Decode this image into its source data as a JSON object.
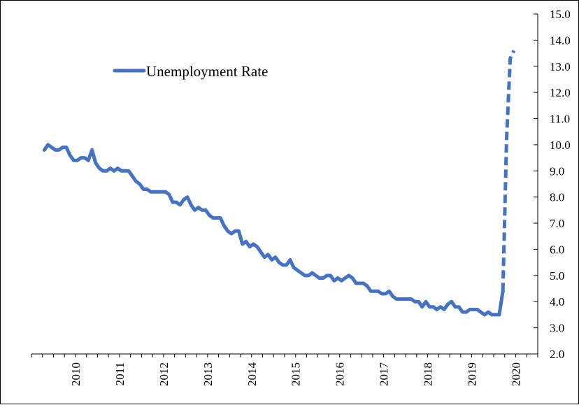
{
  "chart_data": {
    "type": "line",
    "title": "",
    "xlabel": "",
    "ylabel": "",
    "x_axis": {
      "type": "date",
      "range": [
        "2009-07",
        "2020-12"
      ],
      "tick_labels": [
        "2010",
        "2011",
        "2012",
        "2013",
        "2014",
        "2015",
        "2016",
        "2017",
        "2018",
        "2019",
        "2020"
      ],
      "label_rotation": "vertical"
    },
    "y_axis": {
      "position": "right",
      "range": [
        2.0,
        15.0
      ],
      "tick_labels": [
        "2.0",
        "3.0",
        "4.0",
        "5.0",
        "6.0",
        "7.0",
        "8.0",
        "9.0",
        "10.0",
        "11.0",
        "12.0",
        "13.0",
        "14.0",
        "15.0"
      ]
    },
    "grid": false,
    "legend": {
      "placement": "top-left",
      "entries": [
        "Unemployment Rate"
      ]
    },
    "series": [
      {
        "name": "Unemployment Rate",
        "color": "#4472C4",
        "style": "solid",
        "points": [
          [
            "2009-10",
            9.8
          ],
          [
            "2009-11",
            10.0
          ],
          [
            "2009-12",
            9.9
          ],
          [
            "2010-01",
            9.8
          ],
          [
            "2010-02",
            9.8
          ],
          [
            "2010-03",
            9.9
          ],
          [
            "2010-04",
            9.9
          ],
          [
            "2010-05",
            9.6
          ],
          [
            "2010-06",
            9.4
          ],
          [
            "2010-07",
            9.4
          ],
          [
            "2010-08",
            9.5
          ],
          [
            "2010-09",
            9.5
          ],
          [
            "2010-10",
            9.4
          ],
          [
            "2010-11",
            9.8
          ],
          [
            "2010-12",
            9.3
          ],
          [
            "2011-01",
            9.1
          ],
          [
            "2011-02",
            9.0
          ],
          [
            "2011-03",
            9.0
          ],
          [
            "2011-04",
            9.1
          ],
          [
            "2011-05",
            9.0
          ],
          [
            "2011-06",
            9.1
          ],
          [
            "2011-07",
            9.0
          ],
          [
            "2011-08",
            9.0
          ],
          [
            "2011-09",
            9.0
          ],
          [
            "2011-10",
            8.8
          ],
          [
            "2011-11",
            8.6
          ],
          [
            "2011-12",
            8.5
          ],
          [
            "2012-01",
            8.3
          ],
          [
            "2012-02",
            8.3
          ],
          [
            "2012-03",
            8.2
          ],
          [
            "2012-04",
            8.2
          ],
          [
            "2012-05",
            8.2
          ],
          [
            "2012-06",
            8.2
          ],
          [
            "2012-07",
            8.2
          ],
          [
            "2012-08",
            8.1
          ],
          [
            "2012-09",
            7.8
          ],
          [
            "2012-10",
            7.8
          ],
          [
            "2012-11",
            7.7
          ],
          [
            "2012-12",
            7.9
          ],
          [
            "2013-01",
            8.0
          ],
          [
            "2013-02",
            7.7
          ],
          [
            "2013-03",
            7.5
          ],
          [
            "2013-04",
            7.6
          ],
          [
            "2013-05",
            7.5
          ],
          [
            "2013-06",
            7.5
          ],
          [
            "2013-07",
            7.3
          ],
          [
            "2013-08",
            7.2
          ],
          [
            "2013-09",
            7.2
          ],
          [
            "2013-10",
            7.2
          ],
          [
            "2013-11",
            6.9
          ],
          [
            "2013-12",
            6.7
          ],
          [
            "2014-01",
            6.6
          ],
          [
            "2014-02",
            6.7
          ],
          [
            "2014-03",
            6.7
          ],
          [
            "2014-04",
            6.2
          ],
          [
            "2014-05",
            6.3
          ],
          [
            "2014-06",
            6.1
          ],
          [
            "2014-07",
            6.2
          ],
          [
            "2014-08",
            6.1
          ],
          [
            "2014-09",
            5.9
          ],
          [
            "2014-10",
            5.7
          ],
          [
            "2014-11",
            5.8
          ],
          [
            "2014-12",
            5.6
          ],
          [
            "2015-01",
            5.7
          ],
          [
            "2015-02",
            5.5
          ],
          [
            "2015-03",
            5.4
          ],
          [
            "2015-04",
            5.4
          ],
          [
            "2015-05",
            5.6
          ],
          [
            "2015-06",
            5.3
          ],
          [
            "2015-07",
            5.2
          ],
          [
            "2015-08",
            5.1
          ],
          [
            "2015-09",
            5.0
          ],
          [
            "2015-10",
            5.0
          ],
          [
            "2015-11",
            5.1
          ],
          [
            "2015-12",
            5.0
          ],
          [
            "2016-01",
            4.9
          ],
          [
            "2016-02",
            4.9
          ],
          [
            "2016-03",
            5.0
          ],
          [
            "2016-04",
            5.0
          ],
          [
            "2016-05",
            4.8
          ],
          [
            "2016-06",
            4.9
          ],
          [
            "2016-07",
            4.8
          ],
          [
            "2016-08",
            4.9
          ],
          [
            "2016-09",
            5.0
          ],
          [
            "2016-10",
            4.9
          ],
          [
            "2016-11",
            4.7
          ],
          [
            "2016-12",
            4.7
          ],
          [
            "2017-01",
            4.7
          ],
          [
            "2017-02",
            4.6
          ],
          [
            "2017-03",
            4.4
          ],
          [
            "2017-04",
            4.4
          ],
          [
            "2017-05",
            4.4
          ],
          [
            "2017-06",
            4.3
          ],
          [
            "2017-07",
            4.3
          ],
          [
            "2017-08",
            4.4
          ],
          [
            "2017-09",
            4.2
          ],
          [
            "2017-10",
            4.1
          ],
          [
            "2017-11",
            4.1
          ],
          [
            "2017-12",
            4.1
          ],
          [
            "2018-01",
            4.1
          ],
          [
            "2018-02",
            4.1
          ],
          [
            "2018-03",
            4.0
          ],
          [
            "2018-04",
            4.0
          ],
          [
            "2018-05",
            3.8
          ],
          [
            "2018-06",
            4.0
          ],
          [
            "2018-07",
            3.8
          ],
          [
            "2018-08",
            3.8
          ],
          [
            "2018-09",
            3.7
          ],
          [
            "2018-10",
            3.8
          ],
          [
            "2018-11",
            3.7
          ],
          [
            "2018-12",
            3.9
          ],
          [
            "2019-01",
            4.0
          ],
          [
            "2019-02",
            3.8
          ],
          [
            "2019-03",
            3.8
          ],
          [
            "2019-04",
            3.6
          ],
          [
            "2019-05",
            3.6
          ],
          [
            "2019-06",
            3.7
          ],
          [
            "2019-07",
            3.7
          ],
          [
            "2019-08",
            3.7
          ],
          [
            "2019-09",
            3.6
          ],
          [
            "2019-10",
            3.5
          ],
          [
            "2019-11",
            3.6
          ],
          [
            "2019-12",
            3.5
          ],
          [
            "2020-01",
            3.5
          ],
          [
            "2020-02",
            3.5
          ],
          [
            "2020-03",
            4.4
          ]
        ]
      },
      {
        "name": "",
        "color": "#4472C4",
        "style": "dashed",
        "points": [
          [
            "2020-03",
            4.4
          ],
          [
            "2020-04",
            10.2
          ],
          [
            "2020-05",
            13.3
          ],
          [
            "2020-06",
            13.6
          ]
        ]
      }
    ]
  }
}
